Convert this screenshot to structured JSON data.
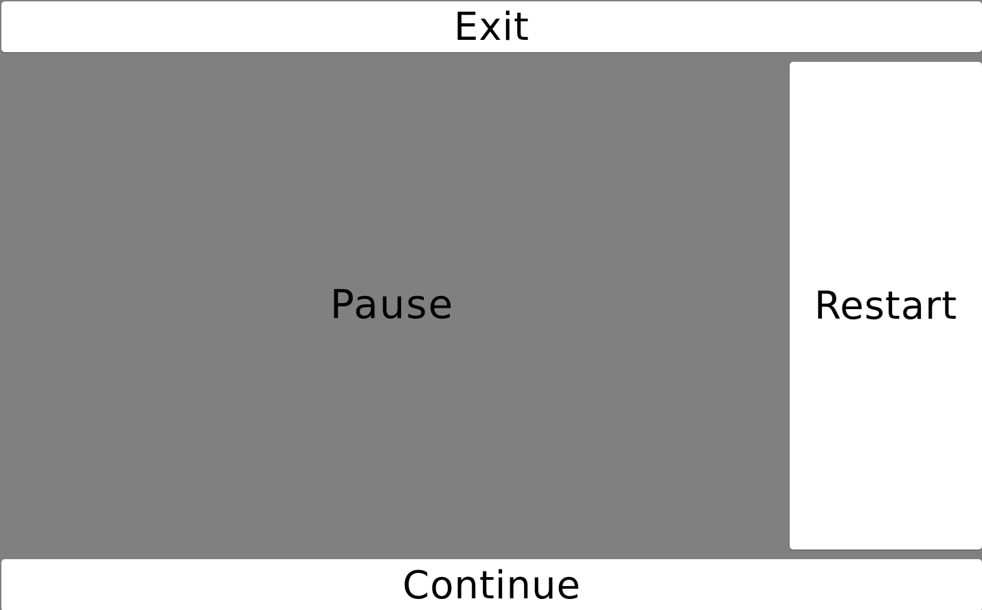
{
  "buttons": {
    "exit": "Exit",
    "restart": "Restart",
    "continue": "Continue"
  },
  "overlay": {
    "title": "Pause"
  },
  "colors": {
    "background": "#808080",
    "button": "#ffffff",
    "text": "#000000"
  }
}
